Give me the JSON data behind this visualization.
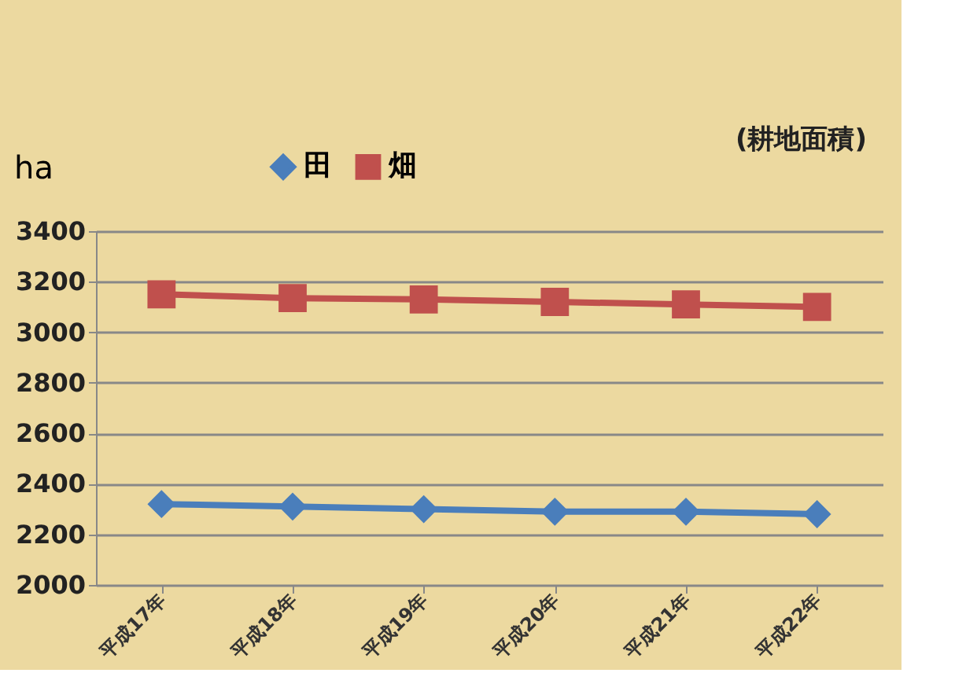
{
  "chart_data": {
    "type": "line",
    "ylabel": "ha",
    "annotations": [
      "(耕地面積)"
    ],
    "categories": [
      "平成17年",
      "平成18年",
      "平成19年",
      "平成20年",
      "平成21年",
      "平成22年"
    ],
    "series": [
      {
        "name": "田",
        "color": "#4a7ebb",
        "marker": "diamond",
        "values": [
          2320,
          2310,
          2300,
          2290,
          2290,
          2280
        ]
      },
      {
        "name": "畑",
        "color": "#c0504d",
        "marker": "square",
        "values": [
          3150,
          3135,
          3130,
          3120,
          3110,
          3100
        ]
      }
    ],
    "ylim": [
      2000,
      3400
    ],
    "yticks": [
      2000,
      2200,
      2400,
      2600,
      2800,
      3000,
      3200,
      3400
    ],
    "grid": "y",
    "legend": "top",
    "line_style": "solid"
  }
}
